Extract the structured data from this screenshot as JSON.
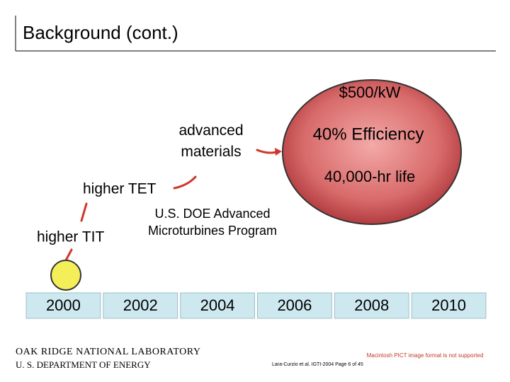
{
  "title": "Background (cont.)",
  "goal": {
    "cost": "$500/kW",
    "efficiency": "40% Efficiency",
    "life": "40,000-hr life"
  },
  "steps": [
    "higher TIT",
    "higher TET",
    "advanced materials"
  ],
  "program": "U.S. DOE Advanced Microturbines Program",
  "timeline": [
    "2000",
    "2002",
    "2004",
    "2006",
    "2008",
    "2010"
  ],
  "footer": {
    "org_line1": "OAK RIDGE NATIONAL LABORATORY",
    "org_line2": "U. S. DEPARTMENT OF ENERGY",
    "citation": "Lara-Curzio et al. IGTI-2004 Page 6 of 45",
    "placeholder": "Macintosh PICT image format is not supported"
  }
}
